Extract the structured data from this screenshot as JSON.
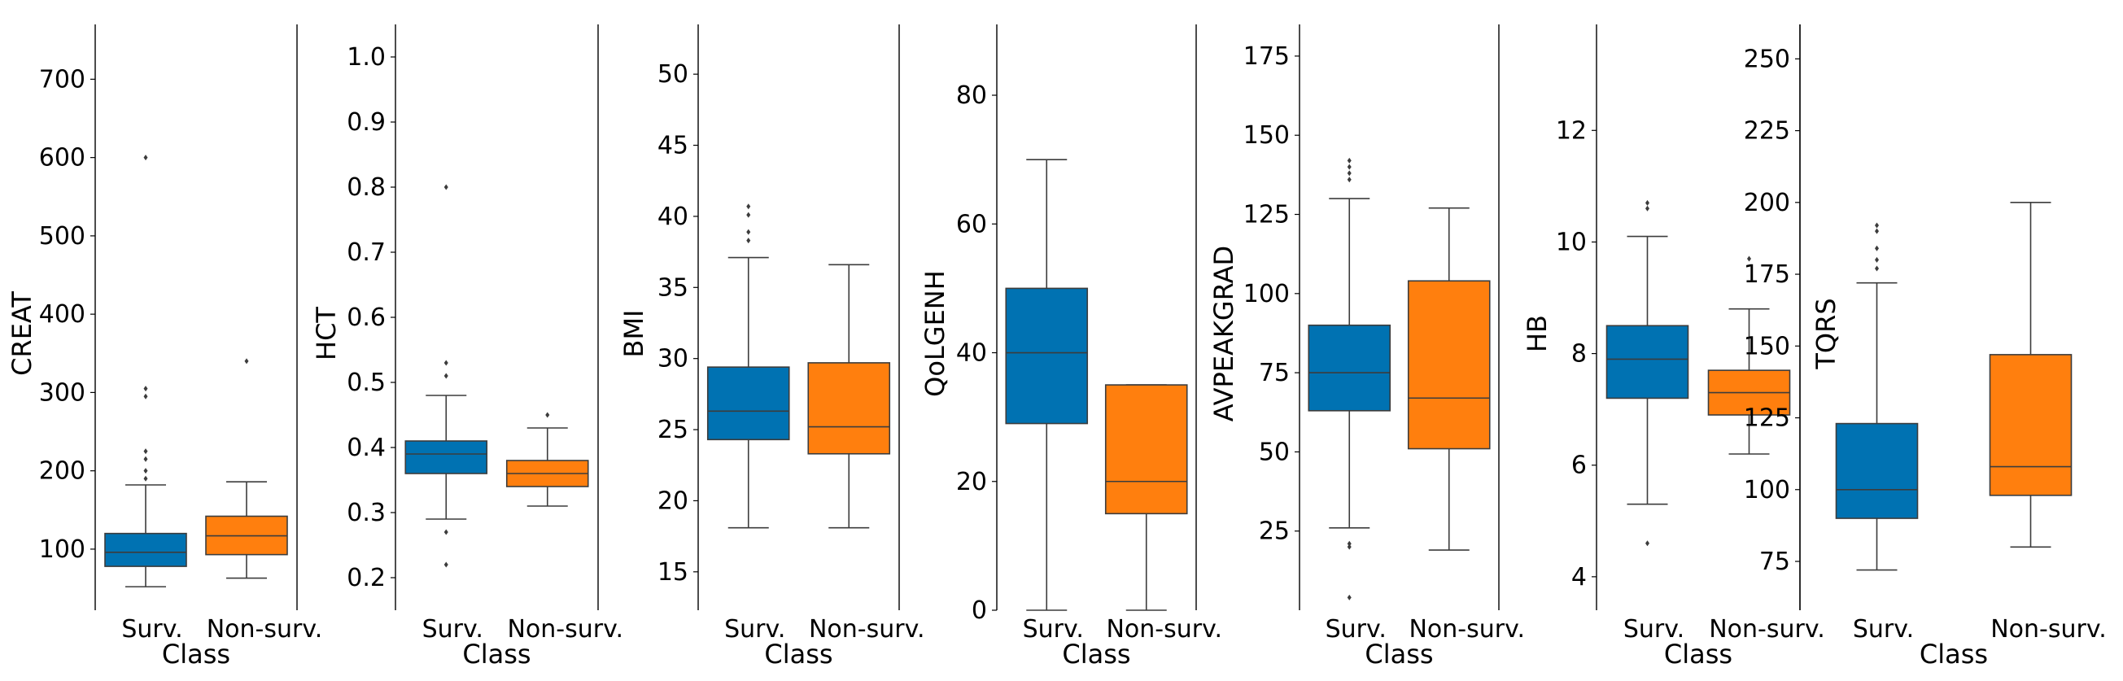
{
  "chart_data": {
    "type": "box",
    "xlabel": "Class",
    "categories": [
      "Surv.",
      "Non-surv."
    ],
    "colors": {
      "Surv.": "#0072B2",
      "Non-surv.": "#FF7F0E"
    },
    "panels": [
      {
        "ylabel": "CREAT",
        "ylim": [
          22,
          770
        ],
        "yticks": [
          100,
          200,
          300,
          400,
          500,
          600,
          700
        ],
        "tick_labels": [
          "100",
          "200",
          "300",
          "400",
          "500",
          "600",
          "700"
        ],
        "boxes": [
          {
            "group": "Surv.",
            "whislo": 52,
            "q1": 78,
            "median": 96,
            "q3": 120,
            "whishi": 182,
            "fliers": [
              190,
              200,
              215,
              225,
              295,
              305,
              600
            ]
          },
          {
            "group": "Non-surv.",
            "whislo": 63,
            "q1": 93,
            "median": 117,
            "q3": 142,
            "whishi": 186,
            "fliers": [
              340
            ]
          }
        ]
      },
      {
        "ylabel": "HCT",
        "ylim": [
          0.15,
          1.05
        ],
        "yticks": [
          0.2,
          0.3,
          0.4,
          0.5,
          0.6,
          0.7,
          0.8,
          0.9,
          1.0
        ],
        "tick_labels": [
          "0.2",
          "0.3",
          "0.4",
          "0.5",
          "0.6",
          "0.7",
          "0.8",
          "0.9",
          "1.0"
        ],
        "boxes": [
          {
            "group": "Surv.",
            "whislo": 0.29,
            "q1": 0.36,
            "median": 0.39,
            "q3": 0.41,
            "whishi": 0.48,
            "fliers": [
              0.22,
              0.27,
              0.51,
              0.53,
              0.8
            ]
          },
          {
            "group": "Non-surv.",
            "whislo": 0.31,
            "q1": 0.34,
            "median": 0.36,
            "q3": 0.38,
            "whishi": 0.43,
            "fliers": [
              0.45
            ]
          }
        ]
      },
      {
        "ylabel": "BMI",
        "ylim": [
          12.3,
          53.5
        ],
        "yticks": [
          15,
          20,
          25,
          30,
          35,
          40,
          45,
          50
        ],
        "tick_labels": [
          "15",
          "20",
          "25",
          "30",
          "35",
          "40",
          "45",
          "50"
        ],
        "boxes": [
          {
            "group": "Surv.",
            "whislo": 18.1,
            "q1": 24.3,
            "median": 26.3,
            "q3": 29.4,
            "whishi": 37.1,
            "fliers": [
              38.3,
              38.9,
              40.1,
              40.7
            ]
          },
          {
            "group": "Non-surv.",
            "whislo": 18.1,
            "q1": 23.3,
            "median": 25.2,
            "q3": 29.7,
            "whishi": 36.6,
            "fliers": []
          }
        ]
      },
      {
        "ylabel": "QoLGENH",
        "ylim": [
          0,
          91
        ],
        "yticks": [
          0,
          20,
          40,
          60,
          80
        ],
        "tick_labels": [
          "0",
          "20",
          "40",
          "60",
          "80"
        ],
        "boxes": [
          {
            "group": "Surv.",
            "whislo": 0,
            "q1": 29,
            "median": 40,
            "q3": 50,
            "whishi": 70,
            "fliers": []
          },
          {
            "group": "Non-surv.",
            "whislo": 0,
            "q1": 15,
            "median": 20,
            "q3": 35,
            "whishi": 35,
            "fliers": []
          }
        ]
      },
      {
        "ylabel": "AVPEAKGRAD",
        "ylim": [
          0,
          185
        ],
        "yticks": [
          25,
          50,
          75,
          100,
          125,
          150,
          175
        ],
        "tick_labels": [
          "25",
          "50",
          "75",
          "100",
          "125",
          "150",
          "175"
        ],
        "boxes": [
          {
            "group": "Surv.",
            "whislo": 26,
            "q1": 63,
            "median": 75,
            "q3": 90,
            "whishi": 130,
            "fliers": [
              4,
              20,
              21,
              136,
              138,
              140,
              142
            ]
          },
          {
            "group": "Non-surv.",
            "whislo": 19,
            "q1": 51,
            "median": 67,
            "q3": 104,
            "whishi": 127,
            "fliers": []
          }
        ]
      },
      {
        "ylabel": "HB",
        "ylim": [
          3.4,
          13.9
        ],
        "yticks": [
          4,
          6,
          8,
          10,
          12
        ],
        "tick_labels": [
          "4",
          "6",
          "8",
          "10",
          "12"
        ],
        "boxes": [
          {
            "group": "Surv.",
            "whislo": 5.3,
            "q1": 7.2,
            "median": 7.9,
            "q3": 8.5,
            "whishi": 10.1,
            "fliers": [
              4.6,
              10.6,
              10.7
            ]
          },
          {
            "group": "Non-surv.",
            "whislo": 6.2,
            "q1": 6.9,
            "median": 7.3,
            "q3": 7.7,
            "whishi": 8.8,
            "fliers": [
              9.7
            ]
          }
        ]
      },
      {
        "ylabel": "TQRS",
        "ylim": [
          58,
          262
        ],
        "yticks": [
          75,
          100,
          125,
          150,
          175,
          200,
          225,
          250
        ],
        "tick_labels": [
          "75",
          "100",
          "125",
          "150",
          "175",
          "200",
          "225",
          "250"
        ],
        "boxes": [
          {
            "group": "Surv.",
            "whislo": 72,
            "q1": 90,
            "median": 100,
            "q3": 123,
            "whishi": 172,
            "fliers": [
              177,
              180,
              184,
              190,
              192
            ]
          },
          {
            "group": "Non-surv.",
            "whislo": 80,
            "q1": 98,
            "median": 108,
            "q3": 147,
            "whishi": 200,
            "fliers": []
          }
        ]
      }
    ]
  }
}
